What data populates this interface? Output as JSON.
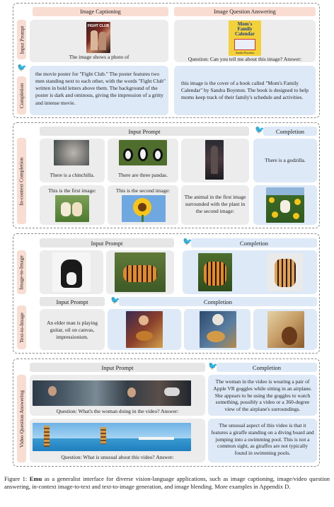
{
  "section1": {
    "headers": {
      "captioning": "Image Captioning",
      "vqa": "Image Question Answering"
    },
    "row_labels": {
      "input": "Input Prompt",
      "completion": "Completion"
    },
    "captioning_prompt": "The image shows a photo of",
    "vqa_prompt": "Question: Can you tell me about this image? Answer:",
    "captioning_completion": "the movie poster for \"Fight Club.\" The poster features two men standing next to each other, with the words \"Fight Club\" written in bold letters above them. The background of the poster is dark and ominous, giving the impression of a gritty and intense movie.",
    "vqa_completion": "this image is the cover of a book called \"Mom's Family Calendar\" by Sandra Boynton. The book is designed to help moms keep track of their family's schedule and activities.",
    "poster_text": "FIGHT CLUB",
    "book_title_lines": [
      "Mom's",
      "Family",
      "Calendar"
    ],
    "book_author": "Sandra Boynton"
  },
  "section2": {
    "label": "In-context Completion",
    "input_header": "Input Prompt",
    "completion_header": "Completion",
    "cap_chinchilla": "There is a chinchilla.",
    "cap_pandas": "There are three pandas.",
    "cap_godzilla": "There is a godzilla.",
    "cap_first": "This is the first image:",
    "cap_second": "This is the second image:",
    "cap_question": "The animal in the first image surrounded with the plant in the second image:"
  },
  "section3": {
    "label_i2i": "Image-to-Image",
    "label_t2i": "Text-to-Image",
    "input_header": "Input Prompt",
    "completion_header": "Completion",
    "input_header_t2i": "Input Prompt",
    "completion_header_t2i": "Completion",
    "t2i_prompt": "An elder man is playing guitar, oil on canvas, impressionism."
  },
  "section4": {
    "label": "Video Question Answering",
    "input_header": "Input Prompt",
    "completion_header": "Completion",
    "q1": "Question: What's the woman doing in the video? Answer:",
    "q2": "Question: What is unusual about this video? Answer:",
    "a1": "The woman in the video is wearing a pair of Apple VR goggles while sitting in an airplane. She appears to be using the goggles to watch something, possibly a video or a 360-degree view of the airplane's surroundings.",
    "a2": "The unusual aspect of this video is that it features a giraffe standing on a diving board and jumping into a swimming pool. This is not a common sight, as giraffes are not typically found in swimming pools."
  },
  "caption": {
    "prefix": "Figure 1: ",
    "bold": "Emu",
    "text": " as a generalist interface for diverse vision-language applications, such as image captioning, image/video question answering, in-context image-to-text and text-to-image generation, and image blending. More examples in Appendix D."
  }
}
